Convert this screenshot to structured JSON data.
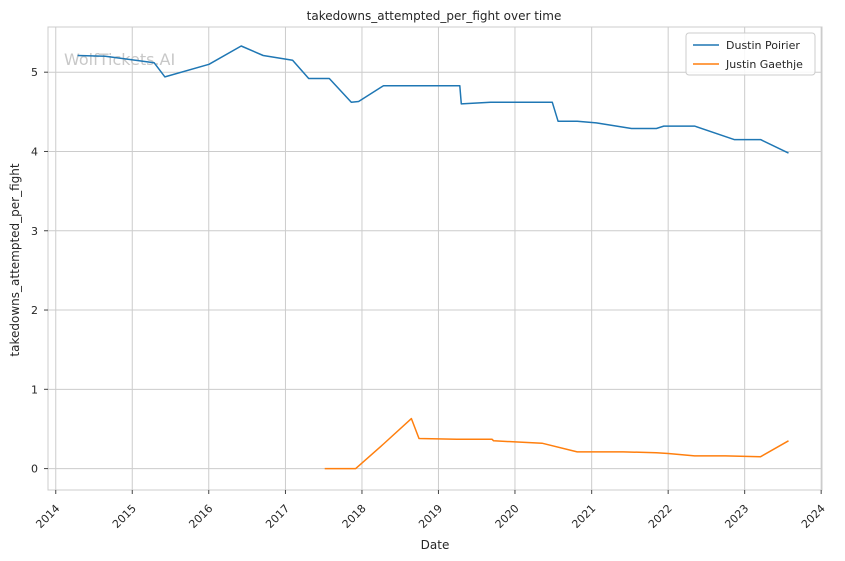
{
  "chart_data": {
    "type": "line",
    "title": "takedowns_attempted_per_fight over time",
    "xlabel": "Date",
    "ylabel": "takedowns_attempted_per_fight",
    "watermark": "WolfTickets.AI",
    "xlim": [
      "2013-11-25",
      "2024-01-05"
    ],
    "ylim": [
      -0.27,
      5.57
    ],
    "x_ticks": [
      "2014",
      "2015",
      "2016",
      "2017",
      "2018",
      "2019",
      "2020",
      "2021",
      "2022",
      "2023",
      "2024"
    ],
    "y_ticks": [
      "0",
      "1",
      "2",
      "3",
      "4",
      "5"
    ],
    "grid": true,
    "legend_position": "top-right",
    "colors": {
      "Dustin Poirier": "#1f77b4",
      "Justin Gaethje": "#ff7f0e"
    },
    "series": [
      {
        "name": "Dustin Poirier",
        "points": [
          [
            "2014-04-15",
            5.21
          ],
          [
            "2014-08-25",
            5.2
          ],
          [
            "2015-04-15",
            5.12
          ],
          [
            "2015-06-06",
            4.94
          ],
          [
            "2016-01-02",
            5.1
          ],
          [
            "2016-06-04",
            5.33
          ],
          [
            "2016-09-17",
            5.21
          ],
          [
            "2017-02-04",
            5.15
          ],
          [
            "2017-04-22",
            4.92
          ],
          [
            "2017-07-29",
            4.92
          ],
          [
            "2017-11-11",
            4.62
          ],
          [
            "2017-12-16",
            4.63
          ],
          [
            "2018-04-14",
            4.83
          ],
          [
            "2019-04-13",
            4.83
          ],
          [
            "2019-04-20",
            4.6
          ],
          [
            "2019-09-07",
            4.62
          ],
          [
            "2020-06-27",
            4.62
          ],
          [
            "2020-07-25",
            4.38
          ],
          [
            "2020-10-24",
            4.38
          ],
          [
            "2021-01-23",
            4.36
          ],
          [
            "2021-07-10",
            4.29
          ],
          [
            "2021-11-06",
            4.29
          ],
          [
            "2021-12-11",
            4.32
          ],
          [
            "2022-05-07",
            4.32
          ],
          [
            "2022-11-12",
            4.15
          ],
          [
            "2023-03-18",
            4.15
          ],
          [
            "2023-07-29",
            3.98
          ]
        ]
      },
      {
        "name": "Justin Gaethje",
        "points": [
          [
            "2017-07-07",
            0.0
          ],
          [
            "2017-12-02",
            0.0
          ],
          [
            "2018-04-14",
            0.31
          ],
          [
            "2018-08-25",
            0.63
          ],
          [
            "2018-09-30",
            0.38
          ],
          [
            "2019-03-30",
            0.37
          ],
          [
            "2019-09-14",
            0.37
          ],
          [
            "2019-09-21",
            0.35
          ],
          [
            "2020-05-09",
            0.32
          ],
          [
            "2020-10-24",
            0.21
          ],
          [
            "2021-01-01",
            0.21
          ],
          [
            "2021-06-01",
            0.21
          ],
          [
            "2021-11-06",
            0.2
          ],
          [
            "2022-01-01",
            0.19
          ],
          [
            "2022-05-07",
            0.16
          ],
          [
            "2022-10-01",
            0.16
          ],
          [
            "2023-03-18",
            0.15
          ],
          [
            "2023-07-29",
            0.35
          ]
        ]
      }
    ]
  }
}
